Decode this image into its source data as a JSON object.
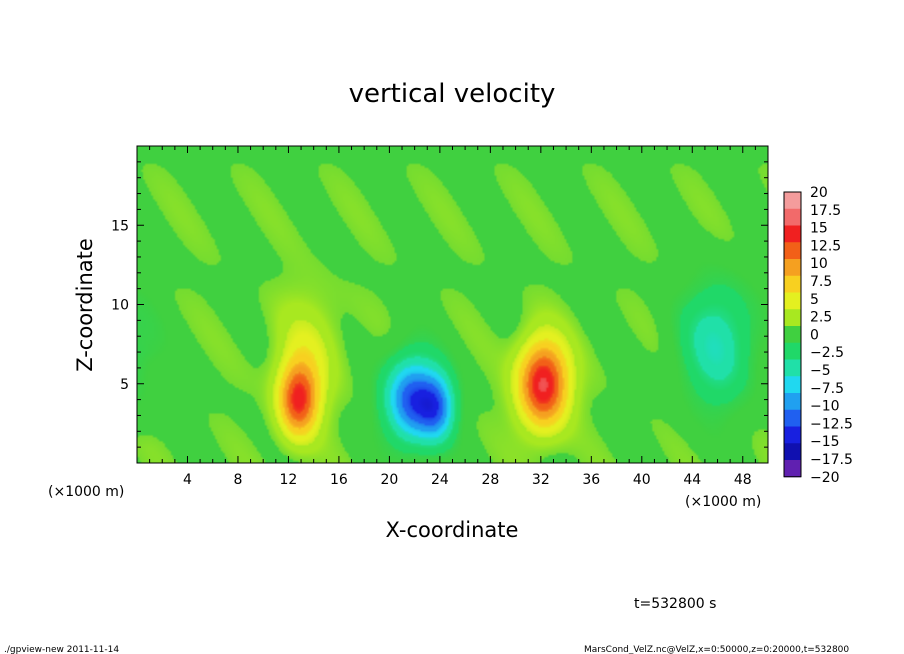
{
  "chart_data": {
    "type": "heatmap",
    "title": "vertical velocity",
    "xlabel": "X-coordinate",
    "ylabel": "Z-coordinate",
    "x_unit_left": "(×1000 m)",
    "x_unit_right": "(×1000 m)",
    "xlim": [
      0,
      50
    ],
    "ylim": [
      0,
      20
    ],
    "x_ticks": [
      "4",
      "8",
      "12",
      "16",
      "20",
      "24",
      "28",
      "32",
      "36",
      "40",
      "44",
      "48"
    ],
    "x_tick_values": [
      4,
      8,
      12,
      16,
      20,
      24,
      28,
      32,
      36,
      40,
      44,
      48
    ],
    "y_ticks": [
      "5",
      "10",
      "15"
    ],
    "y_tick_values": [
      5,
      10,
      15
    ],
    "background_value": 1,
    "features": [
      {
        "label": "updraft",
        "x": 12.8,
        "z": 4.0,
        "rx": 1.6,
        "rz": 2.4,
        "value": 12.5
      },
      {
        "label": "updraft",
        "x": 13.5,
        "z": 7.0,
        "rx": 2.6,
        "rz": 3.6,
        "value": 3
      },
      {
        "label": "downdraft",
        "x": 21.8,
        "z": 4.0,
        "rx": 2.2,
        "rz": 2.8,
        "value": -13
      },
      {
        "label": "downdraft",
        "x": 23.8,
        "z": 3.5,
        "rx": 1.5,
        "rz": 2.2,
        "value": -9
      },
      {
        "label": "updraft",
        "x": 32.2,
        "z": 5.0,
        "rx": 2.0,
        "rz": 2.8,
        "value": 15
      },
      {
        "label": "downdraft",
        "x": 46.0,
        "z": 7.5,
        "rx": 3.0,
        "rz": 4.0,
        "value": -6
      }
    ],
    "colorbar": {
      "labels": [
        "20",
        "17.5",
        "15",
        "12.5",
        "10",
        "7.5",
        "5",
        "2.5",
        "0",
        "−2.5",
        "−5",
        "−7.5",
        "−10",
        "−12.5",
        "−15",
        "−17.5",
        "−20"
      ],
      "colors": [
        "#f49c9c",
        "#f26a6a",
        "#f02020",
        "#f26018",
        "#f5a020",
        "#f8d020",
        "#e4f020",
        "#a8e820",
        "#40d040",
        "#20d868",
        "#20e0a8",
        "#20d8f0",
        "#20a0f0",
        "#2060f0",
        "#1820e0",
        "#1010b0",
        "#6020b0"
      ]
    }
  },
  "footer": {
    "time": "t=532800 s",
    "program": "./gpview-new  2011-11-14",
    "source": "MarsCond_VelZ.nc@VelZ,x=0:50000,z=0:20000,t=532800"
  }
}
